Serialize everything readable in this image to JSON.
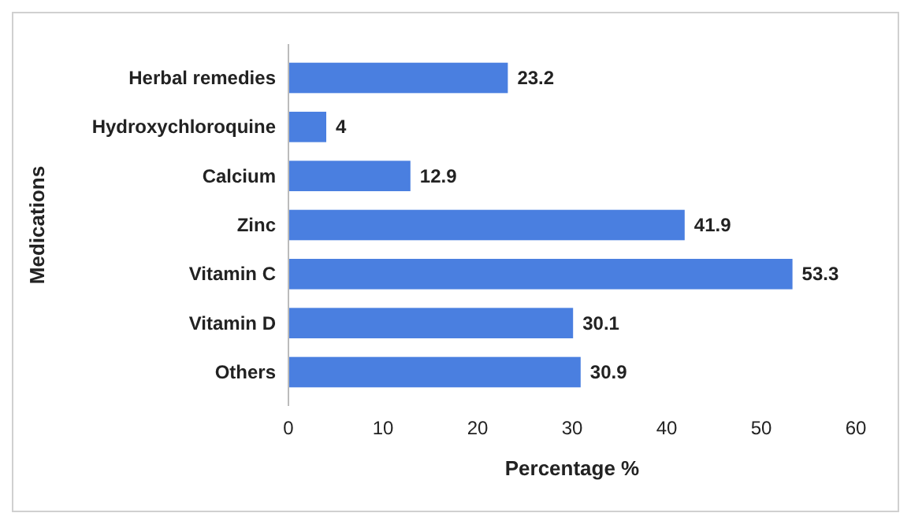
{
  "chart_data": {
    "type": "bar",
    "orientation": "horizontal",
    "xlabel": "Percentage %",
    "ylabel": "Medications",
    "categories": [
      "Herbal remedies",
      "Hydroxychloroquine",
      "Calcium",
      "Zinc",
      "Vitamin C",
      "Vitamin D",
      "Others"
    ],
    "values": [
      23.2,
      4,
      12.9,
      41.9,
      53.3,
      30.1,
      30.9
    ],
    "color": "#4a7fe0",
    "xlim": [
      0,
      60
    ],
    "xticks": [
      0,
      10,
      20,
      30,
      40,
      50,
      60
    ],
    "grid": false,
    "data_labels": true
  }
}
